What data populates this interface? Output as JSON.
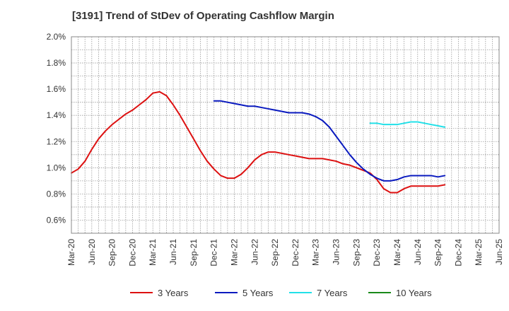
{
  "chart_data": {
    "type": "line",
    "title": "[3191]  Trend of StDev of Operating Cashflow Margin",
    "xlabel": "",
    "ylabel": "",
    "ylim": [
      0.5,
      2.0
    ],
    "y_ticks": [
      "2.0%",
      "1.8%",
      "1.6%",
      "1.4%",
      "1.2%",
      "1.0%",
      "0.8%",
      "0.6%"
    ],
    "y_tick_values": [
      2.0,
      1.8,
      1.6,
      1.4,
      1.2,
      1.0,
      0.8,
      0.6
    ],
    "x_ticks": [
      "Mar-20",
      "Jun-20",
      "Sep-20",
      "Dec-20",
      "Mar-21",
      "Jun-21",
      "Sep-21",
      "Dec-21",
      "Mar-22",
      "Jun-22",
      "Sep-22",
      "Dec-22",
      "Mar-23",
      "Jun-23",
      "Sep-23",
      "Dec-23",
      "Mar-24",
      "Jun-24",
      "Sep-24",
      "Dec-24",
      "Mar-25",
      "Jun-25"
    ],
    "grid": true,
    "legend_position": "bottom",
    "series": [
      {
        "name": "3 Years",
        "color": "#dd1111",
        "points": [
          [
            "Mar-20",
            0.96
          ],
          [
            "Apr-20",
            0.99
          ],
          [
            "May-20",
            1.05
          ],
          [
            "Jun-20",
            1.14
          ],
          [
            "Jul-20",
            1.22
          ],
          [
            "Aug-20",
            1.28
          ],
          [
            "Sep-20",
            1.33
          ],
          [
            "Oct-20",
            1.37
          ],
          [
            "Nov-20",
            1.41
          ],
          [
            "Dec-20",
            1.44
          ],
          [
            "Jan-21",
            1.48
          ],
          [
            "Feb-21",
            1.52
          ],
          [
            "Mar-21",
            1.57
          ],
          [
            "Apr-21",
            1.58
          ],
          [
            "May-21",
            1.55
          ],
          [
            "Jun-21",
            1.48
          ],
          [
            "Jul-21",
            1.4
          ],
          [
            "Aug-21",
            1.31
          ],
          [
            "Sep-21",
            1.22
          ],
          [
            "Oct-21",
            1.13
          ],
          [
            "Nov-21",
            1.05
          ],
          [
            "Dec-21",
            0.99
          ],
          [
            "Jan-22",
            0.94
          ],
          [
            "Feb-22",
            0.92
          ],
          [
            "Mar-22",
            0.92
          ],
          [
            "Apr-22",
            0.95
          ],
          [
            "May-22",
            1.0
          ],
          [
            "Jun-22",
            1.06
          ],
          [
            "Jul-22",
            1.1
          ],
          [
            "Aug-22",
            1.12
          ],
          [
            "Sep-22",
            1.12
          ],
          [
            "Oct-22",
            1.11
          ],
          [
            "Nov-22",
            1.1
          ],
          [
            "Dec-22",
            1.09
          ],
          [
            "Jan-23",
            1.08
          ],
          [
            "Feb-23",
            1.07
          ],
          [
            "Mar-23",
            1.07
          ],
          [
            "Apr-23",
            1.07
          ],
          [
            "May-23",
            1.06
          ],
          [
            "Jun-23",
            1.05
          ],
          [
            "Jul-23",
            1.03
          ],
          [
            "Aug-23",
            1.02
          ],
          [
            "Sep-23",
            1.0
          ],
          [
            "Oct-23",
            0.98
          ],
          [
            "Nov-23",
            0.96
          ],
          [
            "Dec-23",
            0.91
          ],
          [
            "Jan-24",
            0.84
          ],
          [
            "Feb-24",
            0.81
          ],
          [
            "Mar-24",
            0.81
          ],
          [
            "Apr-24",
            0.84
          ],
          [
            "May-24",
            0.86
          ],
          [
            "Jun-24",
            0.86
          ],
          [
            "Jul-24",
            0.86
          ],
          [
            "Aug-24",
            0.86
          ],
          [
            "Sep-24",
            0.86
          ],
          [
            "Oct-24",
            0.87
          ]
        ]
      },
      {
        "name": "5 Years",
        "color": "#0a1abf",
        "points": [
          [
            "Dec-21",
            1.51
          ],
          [
            "Jan-22",
            1.51
          ],
          [
            "Feb-22",
            1.5
          ],
          [
            "Mar-22",
            1.49
          ],
          [
            "Apr-22",
            1.48
          ],
          [
            "May-22",
            1.47
          ],
          [
            "Jun-22",
            1.47
          ],
          [
            "Jul-22",
            1.46
          ],
          [
            "Aug-22",
            1.45
          ],
          [
            "Sep-22",
            1.44
          ],
          [
            "Oct-22",
            1.43
          ],
          [
            "Nov-22",
            1.42
          ],
          [
            "Dec-22",
            1.42
          ],
          [
            "Jan-23",
            1.42
          ],
          [
            "Feb-23",
            1.41
          ],
          [
            "Mar-23",
            1.39
          ],
          [
            "Apr-23",
            1.36
          ],
          [
            "May-23",
            1.31
          ],
          [
            "Jun-23",
            1.24
          ],
          [
            "Jul-23",
            1.17
          ],
          [
            "Aug-23",
            1.1
          ],
          [
            "Sep-23",
            1.04
          ],
          [
            "Oct-23",
            0.99
          ],
          [
            "Nov-23",
            0.95
          ],
          [
            "Dec-23",
            0.92
          ],
          [
            "Jan-24",
            0.9
          ],
          [
            "Feb-24",
            0.9
          ],
          [
            "Mar-24",
            0.91
          ],
          [
            "Apr-24",
            0.93
          ],
          [
            "May-24",
            0.94
          ],
          [
            "Jun-24",
            0.94
          ],
          [
            "Jul-24",
            0.94
          ],
          [
            "Aug-24",
            0.94
          ],
          [
            "Sep-24",
            0.93
          ],
          [
            "Oct-24",
            0.94
          ]
        ]
      },
      {
        "name": "7 Years",
        "color": "#22e0e8",
        "points": [
          [
            "Nov-23",
            1.34
          ],
          [
            "Dec-23",
            1.34
          ],
          [
            "Jan-24",
            1.33
          ],
          [
            "Feb-24",
            1.33
          ],
          [
            "Mar-24",
            1.33
          ],
          [
            "Apr-24",
            1.34
          ],
          [
            "May-24",
            1.35
          ],
          [
            "Jun-24",
            1.35
          ],
          [
            "Jul-24",
            1.34
          ],
          [
            "Aug-24",
            1.33
          ],
          [
            "Sep-24",
            1.32
          ],
          [
            "Oct-24",
            1.31
          ]
        ]
      },
      {
        "name": "10 Years",
        "color": "#1a8a1a",
        "points": []
      }
    ]
  }
}
